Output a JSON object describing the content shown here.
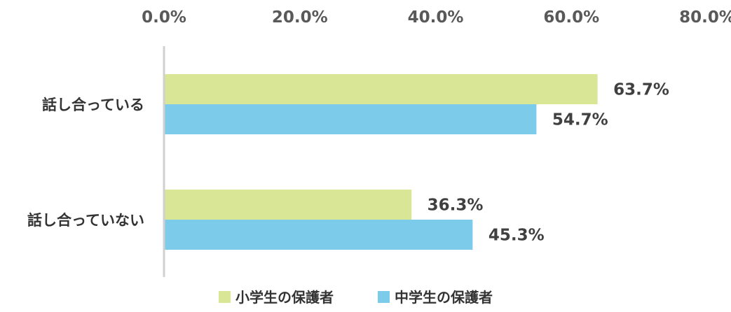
{
  "chart_data": {
    "type": "bar",
    "orientation": "horizontal",
    "categories": [
      "話し合っている",
      "話し合っていない"
    ],
    "series": [
      {
        "name": "小学生の保護者",
        "values": [
          63.7,
          36.3
        ],
        "labels": [
          "63.7%",
          "36.3%"
        ],
        "color": "#d9e696"
      },
      {
        "name": "中学生の保護者",
        "values": [
          54.7,
          45.3
        ],
        "labels": [
          "54.7%",
          "45.3%"
        ],
        "color": "#7ccbeb"
      }
    ],
    "xlim": [
      0,
      80
    ],
    "xticks": [
      0,
      20,
      40,
      60,
      80
    ],
    "xtick_labels": [
      "0.0%",
      "20.0%",
      "40.0%",
      "60.0%",
      "80.0%"
    ],
    "axis_position": "top",
    "gridlines": false,
    "legend_position": "bottom"
  }
}
